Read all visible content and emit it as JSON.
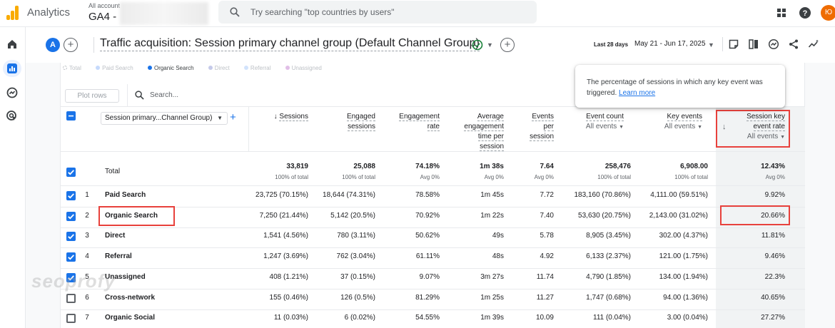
{
  "topbar": {
    "app_name": "Analytics",
    "account_label": "All account",
    "account_name": "GA4 -",
    "search_placeholder": "Try searching \"top countries by users\"",
    "avatar_initial": "Ю",
    "brand_color": "#f9ab00"
  },
  "report": {
    "comparison_chip": "A",
    "title": "Traffic acquisition: Session primary channel group (Default Channel Group)",
    "date_label": "Last 28 days",
    "date_range": "May 21 - Jun 17, 2025"
  },
  "legend": [
    "Total",
    "Paid Search",
    "Organic Search",
    "Direct",
    "Referral",
    "Unassigned"
  ],
  "toolbar": {
    "plot_rows": "Plot rows",
    "search_placeholder": "Search..."
  },
  "tooltip": {
    "text": "The percentage of sessions in which any key event was triggered.",
    "link": "Learn more"
  },
  "table": {
    "dimension": "Session primary...Channel Group)",
    "columns": {
      "sessions": "Sessions",
      "engaged1": "Engaged",
      "engaged2": "sessions",
      "engrate1": "Engagement",
      "engrate2": "rate",
      "avg1": "Average",
      "avg2": "engagement",
      "avg3": "time per",
      "avg4": "session",
      "eps1": "Events",
      "eps2": "per",
      "eps3": "session",
      "evcount": "Event count",
      "evcount_sub": "All events",
      "keyev": "Key events",
      "keyev_sub": "All events",
      "skr1": "Session key",
      "skr2": "event rate",
      "skr_sub": "All events"
    },
    "total": {
      "label": "Total",
      "sessions": "33,819",
      "sessions_sub": "100% of total",
      "engaged": "25,088",
      "engaged_sub": "100% of total",
      "engrate": "74.18%",
      "engrate_sub": "Avg 0%",
      "avgtime": "1m 38s",
      "avgtime_sub": "Avg 0%",
      "eps": "7.64",
      "eps_sub": "Avg 0%",
      "evcount": "258,476",
      "evcount_sub": "100% of total",
      "keyev": "6,908.00",
      "keyev_sub": "100% of total",
      "skr": "12.43%",
      "skr_sub": "Avg 0%"
    },
    "rows": [
      {
        "idx": "1",
        "name": "Paid Search",
        "sessions": "23,725 (70.15%)",
        "engaged": "18,644 (74.31%)",
        "engrate": "78.58%",
        "avgtime": "1m 45s",
        "eps": "7.72",
        "evcount": "183,160 (70.86%)",
        "keyev": "4,111.00 (59.51%)",
        "skr": "9.92%"
      },
      {
        "idx": "2",
        "name": "Organic Search",
        "sessions": "7,250 (21.44%)",
        "engaged": "5,142 (20.5%)",
        "engrate": "70.92%",
        "avgtime": "1m 22s",
        "eps": "7.40",
        "evcount": "53,630 (20.75%)",
        "keyev": "2,143.00 (31.02%)",
        "skr": "20.66%"
      },
      {
        "idx": "3",
        "name": "Direct",
        "sessions": "1,541 (4.56%)",
        "engaged": "780 (3.11%)",
        "engrate": "50.62%",
        "avgtime": "49s",
        "eps": "5.78",
        "evcount": "8,905 (3.45%)",
        "keyev": "302.00 (4.37%)",
        "skr": "11.81%"
      },
      {
        "idx": "4",
        "name": "Referral",
        "sessions": "1,247 (3.69%)",
        "engaged": "762 (3.04%)",
        "engrate": "61.11%",
        "avgtime": "48s",
        "eps": "4.92",
        "evcount": "6,133 (2.37%)",
        "keyev": "121.00 (1.75%)",
        "skr": "9.46%"
      },
      {
        "idx": "5",
        "name": "Unassigned",
        "sessions": "408 (1.21%)",
        "engaged": "37 (0.15%)",
        "engrate": "9.07%",
        "avgtime": "3m 27s",
        "eps": "11.74",
        "evcount": "4,790 (1.85%)",
        "keyev": "134.00 (1.94%)",
        "skr": "22.3%"
      },
      {
        "idx": "6",
        "name": "Cross-network",
        "sessions": "155 (0.46%)",
        "engaged": "126 (0.5%)",
        "engrate": "81.29%",
        "avgtime": "1m 25s",
        "eps": "11.27",
        "evcount": "1,747 (0.68%)",
        "keyev": "94.00 (1.36%)",
        "skr": "40.65%"
      },
      {
        "idx": "7",
        "name": "Organic Social",
        "sessions": "11 (0.03%)",
        "engaged": "6 (0.02%)",
        "engrate": "54.55%",
        "avgtime": "1m 39s",
        "eps": "10.09",
        "evcount": "111 (0.04%)",
        "keyev": "3.00 (0.04%)",
        "skr": "27.27%"
      }
    ]
  },
  "watermark": "seoprofy"
}
